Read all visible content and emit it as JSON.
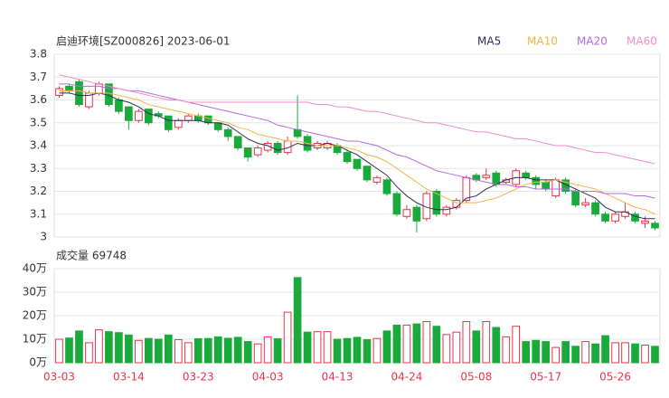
{
  "chart_data": [
    {
      "type": "candlestick",
      "title": "启迪环境[SZ000826] 2023-06-01",
      "categories": [
        "03-03",
        null,
        null,
        null,
        null,
        null,
        null,
        "03-14",
        null,
        null,
        null,
        null,
        null,
        null,
        "03-23",
        null,
        null,
        null,
        null,
        null,
        null,
        "04-03",
        null,
        null,
        null,
        null,
        null,
        null,
        "04-13",
        null,
        null,
        null,
        null,
        null,
        null,
        "04-24",
        null,
        null,
        null,
        null,
        null,
        null,
        "05-08",
        null,
        null,
        null,
        null,
        null,
        null,
        "05-17",
        null,
        null,
        null,
        null,
        null,
        null,
        "05-26",
        null,
        null,
        null,
        null
      ],
      "open": [
        3.62,
        3.66,
        3.68,
        3.57,
        3.63,
        3.67,
        3.6,
        3.57,
        3.51,
        3.56,
        3.54,
        3.53,
        3.48,
        3.51,
        3.53,
        3.53,
        3.5,
        3.47,
        3.44,
        3.39,
        3.36,
        3.38,
        3.41,
        3.37,
        3.47,
        3.44,
        3.39,
        3.39,
        3.4,
        3.37,
        3.34,
        3.31,
        3.24,
        3.25,
        3.19,
        3.09,
        3.13,
        3.08,
        3.2,
        3.1,
        3.13,
        3.16,
        3.27,
        3.26,
        3.28,
        3.24,
        3.23,
        3.28,
        3.26,
        3.24,
        3.18,
        3.25,
        3.2,
        3.14,
        3.15,
        3.1,
        3.07,
        3.09,
        3.1,
        3.06,
        3.06
      ],
      "high": [
        3.66,
        3.67,
        3.69,
        3.64,
        3.68,
        3.67,
        3.61,
        3.57,
        3.56,
        3.56,
        3.55,
        3.53,
        3.52,
        3.54,
        3.54,
        3.53,
        3.5,
        3.48,
        3.44,
        3.39,
        3.4,
        3.42,
        3.42,
        3.44,
        3.62,
        3.45,
        3.42,
        3.42,
        3.41,
        3.38,
        3.34,
        3.31,
        3.27,
        3.26,
        3.2,
        3.14,
        3.14,
        3.2,
        3.21,
        3.14,
        3.17,
        3.27,
        3.28,
        3.3,
        3.29,
        3.26,
        3.3,
        3.29,
        3.27,
        3.25,
        3.26,
        3.26,
        3.21,
        3.17,
        3.16,
        3.11,
        3.11,
        3.15,
        3.11,
        3.09,
        3.07
      ],
      "low": [
        3.61,
        3.63,
        3.57,
        3.56,
        3.62,
        3.57,
        3.54,
        3.47,
        3.5,
        3.49,
        3.52,
        3.46,
        3.47,
        3.5,
        3.5,
        3.49,
        3.46,
        3.42,
        3.38,
        3.33,
        3.35,
        3.37,
        3.36,
        3.36,
        3.43,
        3.37,
        3.38,
        3.38,
        3.36,
        3.32,
        3.29,
        3.24,
        3.23,
        3.18,
        3.09,
        3.08,
        3.02,
        3.07,
        3.09,
        3.09,
        3.12,
        3.15,
        3.24,
        3.25,
        3.22,
        3.23,
        3.22,
        3.25,
        3.21,
        3.2,
        3.17,
        3.19,
        3.13,
        3.13,
        3.09,
        3.06,
        3.06,
        3.08,
        3.06,
        3.04,
        3.03
      ],
      "close": [
        3.65,
        3.64,
        3.58,
        3.63,
        3.67,
        3.58,
        3.55,
        3.51,
        3.55,
        3.5,
        3.53,
        3.47,
        3.51,
        3.53,
        3.51,
        3.5,
        3.47,
        3.44,
        3.39,
        3.35,
        3.39,
        3.41,
        3.37,
        3.42,
        3.44,
        3.38,
        3.41,
        3.41,
        3.37,
        3.33,
        3.3,
        3.25,
        3.26,
        3.19,
        3.1,
        3.12,
        3.07,
        3.19,
        3.1,
        3.13,
        3.16,
        3.26,
        3.25,
        3.27,
        3.23,
        3.25,
        3.29,
        3.26,
        3.23,
        3.21,
        3.25,
        3.2,
        3.14,
        3.15,
        3.1,
        3.07,
        3.1,
        3.11,
        3.07,
        3.07,
        3.04
      ],
      "up_color": "#e8334a",
      "down_color": "#1aaa3c",
      "series": [
        {
          "name": "MA5",
          "color": "#2d2d5a",
          "values": [
            3.63,
            3.63,
            3.62,
            3.62,
            3.63,
            3.62,
            3.6,
            3.59,
            3.57,
            3.54,
            3.53,
            3.51,
            3.51,
            3.51,
            3.51,
            3.5,
            3.5,
            3.49,
            3.46,
            3.43,
            3.41,
            3.4,
            3.38,
            3.39,
            3.41,
            3.4,
            3.4,
            3.41,
            3.4,
            3.38,
            3.36,
            3.33,
            3.3,
            3.27,
            3.22,
            3.18,
            3.15,
            3.13,
            3.12,
            3.12,
            3.13,
            3.17,
            3.18,
            3.21,
            3.23,
            3.25,
            3.26,
            3.26,
            3.25,
            3.25,
            3.25,
            3.23,
            3.21,
            3.19,
            3.17,
            3.13,
            3.11,
            3.11,
            3.09,
            3.08,
            3.08
          ]
        },
        {
          "name": "MA10",
          "color": "#f2b347",
          "values": [
            3.64,
            3.64,
            3.64,
            3.63,
            3.63,
            3.63,
            3.62,
            3.61,
            3.6,
            3.58,
            3.57,
            3.56,
            3.55,
            3.54,
            3.53,
            3.52,
            3.51,
            3.5,
            3.48,
            3.47,
            3.45,
            3.44,
            3.43,
            3.42,
            3.42,
            3.41,
            3.4,
            3.4,
            3.4,
            3.39,
            3.38,
            3.36,
            3.35,
            3.33,
            3.3,
            3.27,
            3.24,
            3.21,
            3.19,
            3.17,
            3.15,
            3.15,
            3.15,
            3.16,
            3.17,
            3.19,
            3.21,
            3.23,
            3.24,
            3.24,
            3.25,
            3.24,
            3.23,
            3.22,
            3.21,
            3.19,
            3.17,
            3.15,
            3.13,
            3.12,
            3.1
          ]
        },
        {
          "name": "MA20",
          "color": "#b36be0",
          "values": [
            3.67,
            3.67,
            3.66,
            3.66,
            3.66,
            3.65,
            3.65,
            3.64,
            3.64,
            3.63,
            3.62,
            3.61,
            3.6,
            3.59,
            3.58,
            3.57,
            3.56,
            3.55,
            3.54,
            3.53,
            3.52,
            3.51,
            3.49,
            3.48,
            3.47,
            3.46,
            3.45,
            3.44,
            3.43,
            3.42,
            3.42,
            3.41,
            3.4,
            3.38,
            3.36,
            3.35,
            3.33,
            3.31,
            3.29,
            3.28,
            3.27,
            3.26,
            3.25,
            3.24,
            3.23,
            3.23,
            3.22,
            3.22,
            3.21,
            3.21,
            3.21,
            3.21,
            3.2,
            3.2,
            3.2,
            3.19,
            3.19,
            3.19,
            3.18,
            3.18,
            3.17
          ]
        },
        {
          "name": "MA60",
          "color": "#f08cc8",
          "values": [
            3.71,
            3.7,
            3.69,
            3.68,
            3.67,
            3.66,
            3.65,
            3.64,
            3.63,
            3.62,
            3.61,
            3.6,
            3.6,
            3.59,
            3.59,
            3.59,
            3.59,
            3.59,
            3.59,
            3.59,
            3.59,
            3.59,
            3.59,
            3.59,
            3.59,
            3.59,
            3.58,
            3.58,
            3.57,
            3.57,
            3.56,
            3.55,
            3.55,
            3.54,
            3.53,
            3.52,
            3.51,
            3.5,
            3.5,
            3.49,
            3.48,
            3.47,
            3.46,
            3.46,
            3.45,
            3.44,
            3.43,
            3.43,
            3.42,
            3.41,
            3.4,
            3.4,
            3.39,
            3.38,
            3.37,
            3.37,
            3.36,
            3.35,
            3.34,
            3.33,
            3.32
          ]
        }
      ],
      "ylim": [
        3,
        3.8
      ],
      "yticks": [
        3,
        3.1,
        3.2,
        3.3,
        3.4,
        3.5,
        3.6,
        3.7,
        3.8
      ],
      "grid": true
    },
    {
      "type": "bar",
      "title": "成交量 69748",
      "values": [
        100000,
        105000,
        135000,
        85000,
        140000,
        132000,
        128000,
        118000,
        95000,
        103000,
        100000,
        118000,
        98000,
        85000,
        102000,
        103000,
        110000,
        104000,
        108000,
        90000,
        80000,
        110000,
        102000,
        215000,
        362000,
        130000,
        132000,
        132000,
        100000,
        103000,
        108000,
        98000,
        103000,
        135000,
        160000,
        160000,
        165000,
        175000,
        155000,
        120000,
        130000,
        175000,
        135000,
        175000,
        150000,
        110000,
        155000,
        90000,
        95000,
        90000,
        65000,
        90000,
        70000,
        90000,
        80000,
        115000,
        85000,
        85000,
        80000,
        75000,
        69748
      ],
      "ylim": [
        0,
        400000
      ],
      "yticks": [
        {
          "value": 0,
          "label": "0万"
        },
        {
          "value": 100000,
          "label": "10万"
        },
        {
          "value": 200000,
          "label": "20万"
        },
        {
          "value": 300000,
          "label": "30万"
        },
        {
          "value": 400000,
          "label": "40万"
        }
      ],
      "grid": true
    }
  ]
}
